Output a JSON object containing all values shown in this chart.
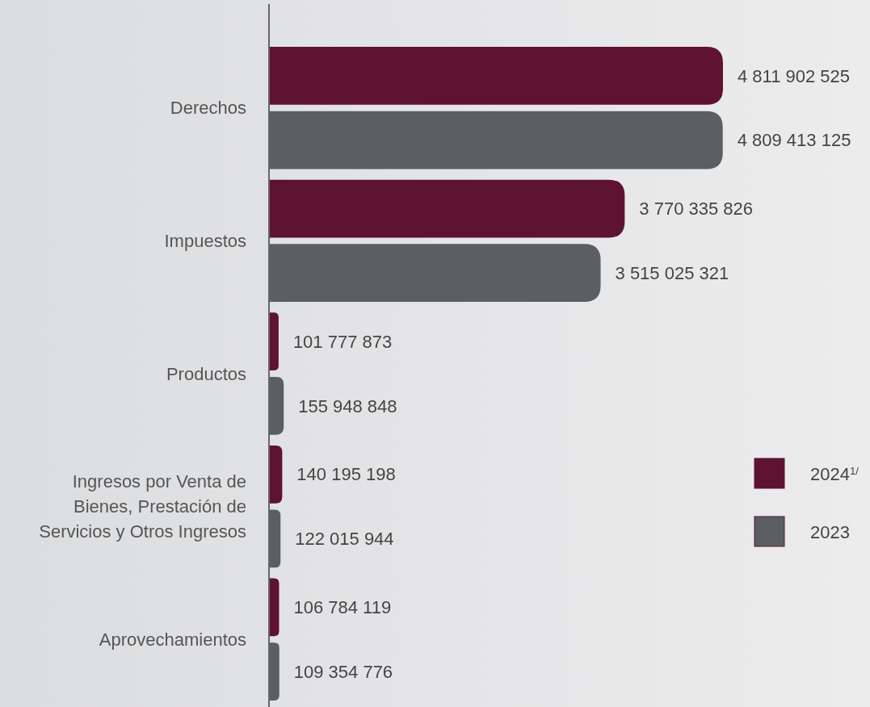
{
  "chart_data": {
    "type": "bar",
    "orientation": "horizontal",
    "categories": [
      "Derechos",
      "Impuestos",
      "Productos",
      "Ingresos por Venta de Bienes, Prestación de Servicios y Otros Ingresos",
      "Aprovechamientos"
    ],
    "series": [
      {
        "name": "2024$^{1/}$",
        "color": "#5e1330",
        "values": [
          4811902525,
          3770335826,
          101777873,
          140195198,
          106784119
        ],
        "value_labels": [
          "4 811 902 525",
          "3 770 335 826",
          "101 777 873",
          "140 195 198",
          "106 784 119"
        ]
      },
      {
        "name": "2023",
        "color": "#5b5f62",
        "values": [
          4809413125,
          3515025321,
          155948848,
          122015944,
          109354776
        ],
        "value_labels": [
          "4 809 413 125",
          "3 515 025 321",
          "155 948 848",
          "122 015 944",
          "109 354 776"
        ]
      }
    ],
    "legend": "right"
  }
}
